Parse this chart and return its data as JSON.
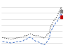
{
  "title": "",
  "male": {
    "years": [
      1851,
      1856,
      1861,
      1866,
      1871,
      1876,
      1881,
      1886,
      1891,
      1896,
      1901,
      1906,
      1911,
      1916,
      1921,
      1926,
      1931,
      1936,
      1941,
      1946,
      1951,
      1956,
      1961,
      1966,
      1971,
      1976,
      1981,
      1986,
      1991,
      1996,
      2001,
      2006,
      2011,
      2016,
      2021,
      2022
    ],
    "values": [
      25.8,
      25.7,
      25.6,
      25.5,
      25.4,
      25.3,
      25.4,
      25.5,
      25.7,
      25.7,
      25.8,
      25.9,
      26.0,
      26.4,
      26.4,
      26.8,
      27.1,
      26.9,
      26.5,
      26.4,
      26.4,
      26.4,
      26.0,
      25.9,
      25.7,
      26.0,
      26.9,
      27.3,
      29.5,
      30.6,
      31.6,
      32.3,
      33.3,
      34.6,
      36.0,
      34.6
    ],
    "color": "#000000",
    "linestyle": "dotted",
    "linewidth": 0.7
  },
  "female": {
    "years": [
      1851,
      1856,
      1861,
      1866,
      1871,
      1876,
      1881,
      1886,
      1891,
      1896,
      1901,
      1906,
      1911,
      1916,
      1921,
      1926,
      1931,
      1936,
      1941,
      1946,
      1951,
      1956,
      1961,
      1966,
      1971,
      1976,
      1981,
      1986,
      1991,
      1996,
      2001,
      2006,
      2011,
      2016,
      2021,
      2022
    ],
    "values": [
      24.5,
      24.4,
      24.3,
      24.2,
      24.1,
      24.0,
      24.1,
      24.2,
      24.4,
      24.4,
      24.5,
      24.6,
      24.7,
      25.2,
      25.3,
      25.7,
      25.9,
      25.7,
      25.1,
      24.7,
      24.5,
      24.3,
      23.9,
      23.7,
      23.4,
      23.7,
      24.6,
      25.4,
      27.7,
      29.0,
      29.9,
      30.8,
      31.4,
      32.7,
      34.5,
      32.8
    ],
    "color": "#4472c4",
    "linestyle": "dashed",
    "linewidth": 0.7
  },
  "highlight_male": {
    "year": 2022,
    "value": 34.6,
    "color": "#808080"
  },
  "highlight_female": {
    "year": 2022,
    "value": 32.8,
    "color": "#c00000"
  },
  "ylim": [
    22.5,
    37.5
  ],
  "xlim": [
    1848,
    2025
  ],
  "background_color": "#ffffff",
  "grid_color": "#d0d0d0",
  "grid_yticks": [
    24,
    26,
    28,
    30,
    32,
    34,
    36
  ]
}
